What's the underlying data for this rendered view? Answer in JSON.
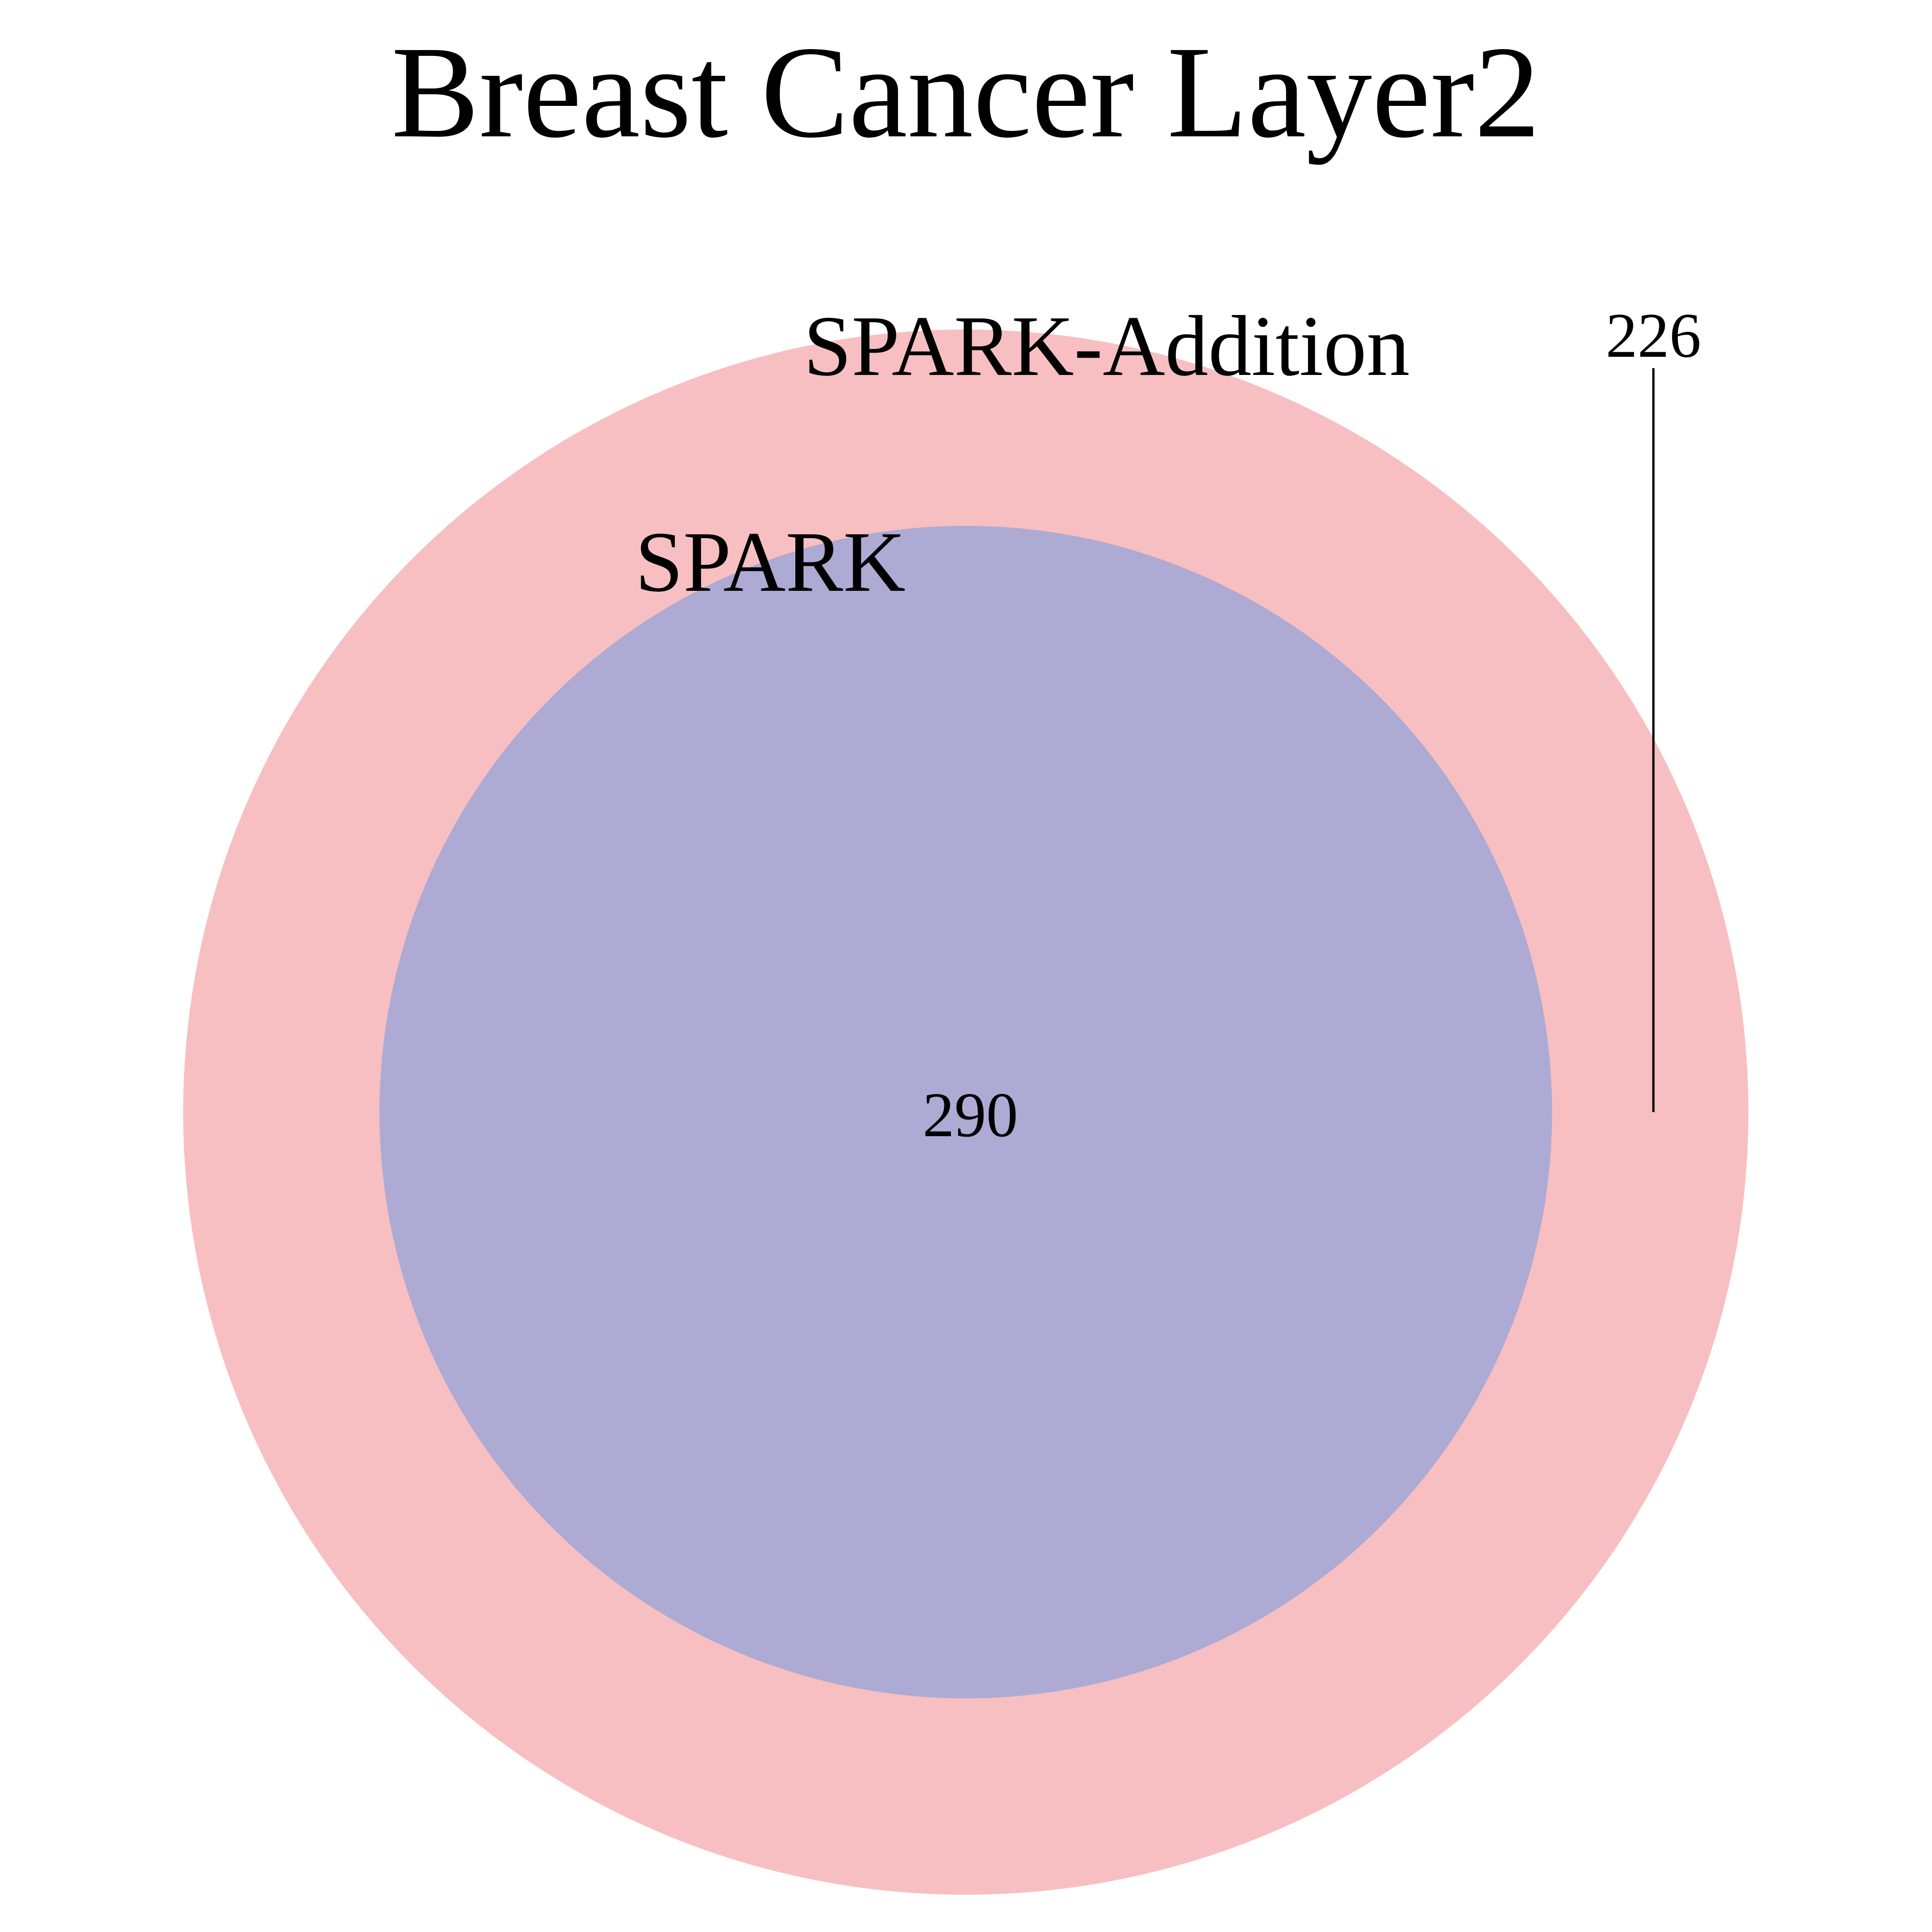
{
  "title": "Breast Cancer Layer2",
  "sets": [
    {
      "name": "SPARK-Addition",
      "color": "#f7bfc1"
    },
    {
      "name": "SPARK",
      "color": "#adaad4"
    }
  ],
  "regions": {
    "only_spark_addition": "226",
    "intersection": "290"
  },
  "colors": {
    "outer_fill": "#f7bfc1",
    "inner_fill": "#adaad4",
    "leader_line": "#000000"
  }
}
